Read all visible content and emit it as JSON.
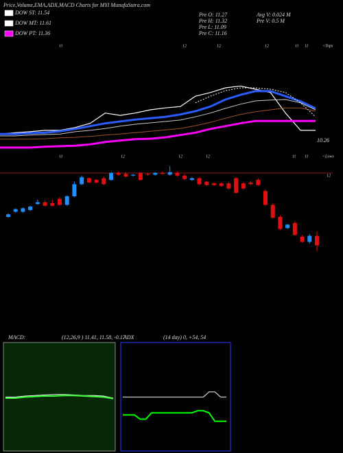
{
  "header": {
    "title": "Price,Volume,EMA,ADX,MACD Charts for MYI MunafaSutra.com",
    "legend": [
      {
        "text": "DOW ST: 11.54",
        "color": "#ffffff"
      },
      {
        "text": "DOW MT: 11.61",
        "color": "#ffffff"
      },
      {
        "text": "DOW PT: 11.36",
        "color": "#ff00ff"
      }
    ],
    "info": [
      "Pre   O: 11.27",
      "Pre   H: 11.32",
      "Pre   L: 11.09",
      "Pre   C: 11.16",
      "Avg V: 0.024  M",
      "Pre   V: 0.5  M"
    ],
    "tops": [
      "11",
      "12",
      "12",
      "12",
      "11",
      "11"
    ],
    "tops_label": "<Tops",
    "lows": [
      "11",
      "12",
      "12",
      "12",
      "11",
      "11"
    ],
    "lows_label": "<Lows"
  },
  "chart_data": [
    {
      "type": "line",
      "ylim": [
        10,
        12.5
      ],
      "annotation": 10.26,
      "series": [
        {
          "color": "#ffffff",
          "values": [
            10.51,
            10.54,
            10.56,
            10.59,
            10.59,
            10.65,
            10.74,
            10.96,
            10.91,
            10.96,
            11.03,
            11.07,
            11.1,
            11.32,
            11.4,
            11.5,
            11.54,
            11.47,
            11.4,
            10.96,
            10.59,
            10.59
          ]
        },
        {
          "color": "#2a5cff",
          "values": [
            10.51,
            10.51,
            10.53,
            10.54,
            10.57,
            10.62,
            10.68,
            10.74,
            10.78,
            10.82,
            10.85,
            10.88,
            10.93,
            11.0,
            11.1,
            11.25,
            11.35,
            11.43,
            11.43,
            11.32,
            11.21,
            11.06
          ]
        },
        {
          "color": "#cccccc",
          "values": [
            10.47,
            10.47,
            10.49,
            10.5,
            10.51,
            10.56,
            10.59,
            10.63,
            10.68,
            10.72,
            10.75,
            10.78,
            10.81,
            10.88,
            10.96,
            11.06,
            11.15,
            11.22,
            11.24,
            11.25,
            11.18,
            11.03
          ]
        },
        {
          "color": "#a0522d",
          "values": [
            10.4,
            10.4,
            10.4,
            10.41,
            10.43,
            10.44,
            10.46,
            10.49,
            10.51,
            10.54,
            10.57,
            10.6,
            10.63,
            10.69,
            10.76,
            10.85,
            10.93,
            10.99,
            11.03,
            11.07,
            11.07,
            11.0
          ]
        },
        {
          "color": "#ff00ff",
          "values": [
            10.22,
            10.22,
            10.22,
            10.24,
            10.25,
            10.26,
            10.29,
            10.34,
            10.37,
            10.4,
            10.41,
            10.44,
            10.49,
            10.54,
            10.62,
            10.68,
            10.74,
            10.79,
            10.79,
            10.79,
            10.79,
            10.79
          ]
        },
        {
          "color": "#ffffff",
          "values": [
            null,
            null,
            null,
            null,
            null,
            null,
            null,
            null,
            null,
            null,
            null,
            null,
            null,
            11.18,
            11.32,
            11.44,
            11.5,
            11.5,
            11.47,
            11.4,
            11.18,
            10.88
          ]
        }
      ]
    },
    {
      "type": "candlestick",
      "ylim": [
        10.9,
        12.2
      ],
      "level": 12,
      "up_color": "#1e90ff",
      "down_color": "#e01010",
      "open": [
        11.49,
        11.55,
        11.55,
        11.57,
        11.64,
        11.66,
        11.65,
        11.7,
        11.63,
        11.73,
        11.87,
        11.94,
        11.92,
        11.94,
        11.92,
        12.0,
        11.99,
        11.97,
        12.0,
        11.99,
        11.98,
        12.0,
        11.98,
        12.0,
        11.97,
        11.92,
        11.94,
        11.9,
        11.88,
        11.88,
        11.88,
        11.94,
        11.88,
        11.89,
        11.92,
        11.79,
        11.63,
        11.49,
        11.36,
        11.42,
        11.26,
        11.2,
        11.27
      ],
      "high": [
        11.53,
        11.59,
        11.6,
        11.62,
        11.69,
        11.68,
        11.69,
        11.72,
        11.74,
        11.9,
        11.97,
        11.95,
        11.93,
        11.96,
        12.01,
        12.02,
        12.01,
        11.99,
        12.01,
        12.0,
        12.01,
        12.02,
        12.08,
        12.02,
        11.99,
        11.95,
        11.95,
        11.91,
        11.89,
        11.89,
        11.9,
        11.95,
        11.89,
        11.91,
        11.94,
        11.81,
        11.65,
        11.51,
        11.41,
        11.44,
        11.28,
        11.29,
        11.32
      ],
      "low": [
        11.48,
        11.54,
        11.54,
        11.56,
        11.63,
        11.61,
        11.61,
        11.62,
        11.62,
        11.72,
        11.86,
        11.88,
        11.88,
        11.86,
        11.91,
        11.97,
        11.95,
        11.96,
        11.91,
        11.97,
        11.97,
        11.98,
        11.97,
        11.96,
        11.92,
        11.91,
        11.86,
        11.85,
        11.85,
        11.84,
        11.81,
        11.76,
        11.81,
        11.86,
        11.85,
        11.62,
        11.47,
        11.34,
        11.35,
        11.27,
        11.19,
        11.18,
        11.09
      ],
      "close": [
        11.52,
        11.58,
        11.59,
        11.61,
        11.66,
        11.62,
        11.62,
        11.63,
        11.73,
        11.87,
        11.95,
        11.89,
        11.89,
        11.87,
        12.0,
        11.98,
        11.96,
        11.98,
        11.92,
        11.98,
        12.0,
        11.99,
        12.01,
        11.97,
        11.93,
        11.94,
        11.87,
        11.86,
        11.86,
        11.85,
        11.82,
        11.77,
        11.82,
        11.87,
        11.86,
        11.63,
        11.48,
        11.35,
        11.4,
        11.28,
        11.2,
        11.27,
        11.16
      ]
    },
    {
      "type": "line",
      "title": "MACD:",
      "subtitle": "(12,26,9 ) 11.41, 11.58, -0.17",
      "background": "#062806",
      "ylim": [
        -1,
        1
      ],
      "series": [
        {
          "color": "#ffffff",
          "values": [
            0,
            0,
            0.02,
            0.03,
            0.04,
            0.05,
            0.05,
            0.04,
            0.03,
            0.03,
            0.02,
            -0.02
          ]
        },
        {
          "color": "#33ff33",
          "values": [
            -0.02,
            -0.02,
            0,
            0.01,
            0.02,
            0.02,
            0.03,
            0.03,
            0.02,
            0.01,
            0,
            -0.03
          ]
        }
      ]
    },
    {
      "type": "line",
      "title": "ADX",
      "subtitle": "(14 day) 0, +54, 54",
      "background": "#000000",
      "ylim": [
        0,
        100
      ],
      "series": [
        {
          "color": "#cccccc",
          "values": [
            50,
            50,
            50,
            50,
            50,
            50,
            50,
            50,
            50,
            50,
            50,
            50,
            50,
            50,
            50,
            55,
            55,
            50,
            50
          ]
        },
        {
          "color": "#00ff00",
          "values": [
            33,
            33,
            33,
            29,
            29,
            35,
            35,
            35,
            35,
            35,
            35,
            35,
            35,
            37,
            37,
            35,
            27,
            27,
            27
          ]
        }
      ]
    }
  ]
}
